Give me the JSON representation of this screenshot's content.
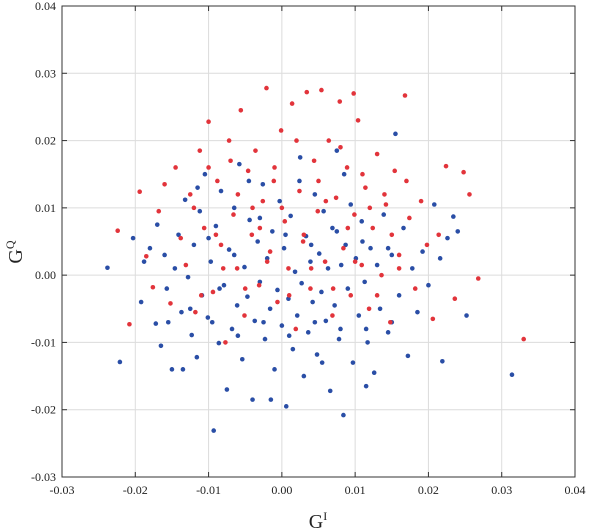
{
  "chart_data": {
    "type": "scatter",
    "title": "",
    "xlabel": {
      "base": "G",
      "sup": "I"
    },
    "ylabel": {
      "base": "G",
      "sup": "Q"
    },
    "xlim": [
      -0.03,
      0.04
    ],
    "ylim": [
      -0.03,
      0.04
    ],
    "xticks": [
      "-0.03",
      "-0.02",
      "-0.01",
      "0.00",
      "0.01",
      "0.02",
      "0.03",
      "0.04"
    ],
    "yticks": [
      "-0.03",
      "-0.02",
      "-0.01",
      "0.00",
      "0.01",
      "0.02",
      "0.03",
      "0.04"
    ],
    "grid": true,
    "legend": "none",
    "series": [
      {
        "color": "#2a4ea6",
        "points": [
          [
            -0.0238,
            0.0011
          ],
          [
            -0.0221,
            -0.0129
          ],
          [
            -0.0203,
            0.0055
          ],
          [
            -0.0192,
            -0.004
          ],
          [
            -0.0188,
            0.002
          ],
          [
            -0.0172,
            -0.0072
          ],
          [
            -0.017,
            0.0075
          ],
          [
            -0.0165,
            -0.0105
          ],
          [
            -0.016,
            0.003
          ],
          [
            -0.0157,
            -0.002
          ],
          [
            -0.015,
            -0.014
          ],
          [
            -0.0146,
            0.001
          ],
          [
            -0.0141,
            0.006
          ],
          [
            -0.0137,
            -0.0055
          ],
          [
            -0.0132,
            0.0112
          ],
          [
            -0.0128,
            -0.0003
          ],
          [
            -0.0123,
            -0.0089
          ],
          [
            -0.012,
            0.0045
          ],
          [
            -0.0116,
            -0.0122
          ],
          [
            -0.0112,
            0.0095
          ],
          [
            -0.0109,
            -0.003
          ],
          [
            -0.0105,
            0.015
          ],
          [
            -0.0101,
            -0.0063
          ],
          [
            -0.0097,
            0.002
          ],
          [
            -0.0093,
            -0.0231
          ],
          [
            -0.009,
            0.0073
          ],
          [
            -0.0086,
            -0.0101
          ],
          [
            -0.0083,
            0.0125
          ],
          [
            -0.0079,
            -0.0015
          ],
          [
            -0.0075,
            -0.017
          ],
          [
            -0.0072,
            0.0038
          ],
          [
            -0.0068,
            -0.008
          ],
          [
            -0.0065,
            0.01
          ],
          [
            -0.0061,
            -0.0045
          ],
          [
            -0.0058,
            0.0165
          ],
          [
            -0.0054,
            -0.0125
          ],
          [
            -0.0051,
            0.0012
          ],
          [
            -0.0047,
            -0.0032
          ],
          [
            -0.0044,
            0.0082
          ],
          [
            -0.004,
            -0.0185
          ],
          [
            -0.0037,
            -0.0068
          ],
          [
            -0.0033,
            0.005
          ],
          [
            -0.003,
            -0.001
          ],
          [
            -0.0026,
            0.0135
          ],
          [
            -0.0023,
            -0.0095
          ],
          [
            -0.002,
            0.0025
          ],
          [
            -0.0016,
            -0.005
          ],
          [
            -0.0013,
            0.0065
          ],
          [
            -0.001,
            -0.014
          ],
          [
            -0.0006,
            -0.0022
          ],
          [
            -0.0003,
            0.011
          ],
          [
            0.0,
            -0.0075
          ],
          [
            0.0003,
            0.004
          ],
          [
            0.0006,
            -0.0195
          ],
          [
            0.0009,
            -0.0035
          ],
          [
            0.0012,
            0.0088
          ],
          [
            0.0015,
            -0.011
          ],
          [
            0.0018,
            0.0005
          ],
          [
            0.0021,
            -0.006
          ],
          [
            0.0024,
            0.014
          ],
          [
            0.0027,
            -0.0012
          ],
          [
            0.003,
            -0.015
          ],
          [
            0.0033,
            0.0058
          ],
          [
            0.0036,
            -0.0085
          ],
          [
            0.0039,
            0.002
          ],
          [
            0.0042,
            -0.004
          ],
          [
            0.0045,
            0.012
          ],
          [
            0.0048,
            -0.0118
          ],
          [
            0.0051,
            0.0032
          ],
          [
            0.0054,
            -0.0025
          ],
          [
            0.0057,
            0.0095
          ],
          [
            0.006,
            -0.0068
          ],
          [
            0.0063,
            0.001
          ],
          [
            0.0066,
            -0.0172
          ],
          [
            0.0069,
            0.007
          ],
          [
            0.0072,
            -0.0045
          ],
          [
            0.0075,
            0.0185
          ],
          [
            0.0078,
            -0.0095
          ],
          [
            0.0081,
            0.0015
          ],
          [
            0.0084,
            -0.0208
          ],
          [
            0.0087,
            0.0045
          ],
          [
            0.009,
            -0.002
          ],
          [
            0.0094,
            0.0105
          ],
          [
            0.0097,
            -0.013
          ],
          [
            0.0101,
            0.0025
          ],
          [
            0.0105,
            -0.006
          ],
          [
            0.0109,
            0.008
          ],
          [
            0.0113,
            -0.001
          ],
          [
            0.0117,
            -0.01
          ],
          [
            0.0121,
            0.004
          ],
          [
            0.0126,
            -0.0145
          ],
          [
            0.013,
            0.0015
          ],
          [
            0.0134,
            -0.005
          ],
          [
            0.0139,
            0.009
          ],
          [
            0.0145,
            -0.0085
          ],
          [
            0.015,
            0.003
          ],
          [
            0.0155,
            0.021
          ],
          [
            0.016,
            -0.003
          ],
          [
            0.0166,
            0.007
          ],
          [
            0.0172,
            -0.012
          ],
          [
            0.0178,
            0.001
          ],
          [
            0.0185,
            -0.0055
          ],
          [
            0.0192,
            0.0035
          ],
          [
            0.02,
            -0.0015
          ],
          [
            0.0208,
            0.0105
          ],
          [
            0.0216,
            0.0025
          ],
          [
            0.0219,
            -0.0128
          ],
          [
            0.0226,
            0.0055
          ],
          [
            0.0234,
            0.0087
          ],
          [
            0.024,
            0.0065
          ],
          [
            0.0252,
            -0.006
          ],
          [
            0.0314,
            -0.0148
          ],
          [
            -0.0115,
            0.013
          ],
          [
            -0.0085,
            -0.002
          ],
          [
            -0.0045,
            0.014
          ],
          [
            -0.0015,
            -0.0185
          ],
          [
            0.0025,
            0.0175
          ],
          [
            0.0055,
            -0.013
          ],
          [
            0.0085,
            0.015
          ],
          [
            0.0115,
            -0.0165
          ],
          [
            -0.0135,
            -0.014
          ],
          [
            -0.01,
            0.0055
          ],
          [
            -0.0065,
            0.003
          ],
          [
            -0.003,
            0.0085
          ],
          [
            0.0005,
            0.006
          ],
          [
            0.004,
            0.0045
          ],
          [
            0.0075,
            0.0065
          ],
          [
            0.011,
            0.005
          ],
          [
            0.0145,
            0.004
          ],
          [
            -0.018,
            0.004
          ],
          [
            -0.0155,
            -0.007
          ],
          [
            -0.0125,
            -0.005
          ],
          [
            -0.0095,
            -0.007
          ],
          [
            -0.006,
            -0.009
          ],
          [
            -0.0025,
            -0.007
          ],
          [
            0.001,
            -0.009
          ],
          [
            0.0045,
            -0.007
          ],
          [
            0.008,
            -0.008
          ],
          [
            0.0115,
            -0.008
          ],
          [
            0.015,
            -0.007
          ]
        ]
      },
      {
        "color": "#e2343b",
        "points": [
          [
            -0.0224,
            0.0066
          ],
          [
            -0.0208,
            -0.0073
          ],
          [
            -0.0194,
            0.0124
          ],
          [
            -0.0185,
            0.0028
          ],
          [
            -0.0176,
            -0.0018
          ],
          [
            -0.0168,
            0.0095
          ],
          [
            -0.016,
            0.0135
          ],
          [
            -0.0152,
            -0.0042
          ],
          [
            -0.0145,
            0.016
          ],
          [
            -0.0138,
            0.0055
          ],
          [
            -0.0131,
            0.0015
          ],
          [
            -0.0125,
            0.012
          ],
          [
            -0.0118,
            -0.0055
          ],
          [
            -0.0112,
            0.0185
          ],
          [
            -0.0106,
            0.007
          ],
          [
            -0.01,
            0.0228
          ],
          [
            -0.0094,
            -0.0025
          ],
          [
            -0.0088,
            0.014
          ],
          [
            -0.0083,
            0.0045
          ],
          [
            -0.0077,
            -0.01
          ],
          [
            -0.0072,
            0.02
          ],
          [
            -0.0066,
            0.009
          ],
          [
            -0.0061,
            0.001
          ],
          [
            -0.0056,
            0.0245
          ],
          [
            -0.0051,
            -0.006
          ],
          [
            -0.0046,
            0.0155
          ],
          [
            -0.0041,
            0.006
          ],
          [
            -0.0036,
            0.0185
          ],
          [
            -0.0031,
            -0.0015
          ],
          [
            -0.0026,
            0.011
          ],
          [
            -0.0021,
            0.0278
          ],
          [
            -0.0016,
            0.0035
          ],
          [
            -0.0011,
            0.014
          ],
          [
            -0.0006,
            -0.004
          ],
          [
            -0.0001,
            0.0215
          ],
          [
            0.0004,
            0.008
          ],
          [
            0.0009,
            0.001
          ],
          [
            0.0014,
            0.0255
          ],
          [
            0.0019,
            -0.008
          ],
          [
            0.0024,
            0.0125
          ],
          [
            0.0029,
            0.005
          ],
          [
            0.0034,
            0.0272
          ],
          [
            0.0039,
            -0.002
          ],
          [
            0.0044,
            0.017
          ],
          [
            0.0049,
            0.0095
          ],
          [
            0.0054,
            0.0275
          ],
          [
            0.0059,
            0.002
          ],
          [
            0.0064,
            0.02
          ],
          [
            0.0069,
            -0.006
          ],
          [
            0.0074,
            0.0115
          ],
          [
            0.0079,
            0.0258
          ],
          [
            0.0084,
            0.004
          ],
          [
            0.0089,
            0.016
          ],
          [
            0.0094,
            -0.003
          ],
          [
            0.0099,
            0.009
          ],
          [
            0.0104,
            0.023
          ],
          [
            0.0109,
            0.0015
          ],
          [
            0.0114,
            0.013
          ],
          [
            0.0119,
            -0.005
          ],
          [
            0.0124,
            0.007
          ],
          [
            0.013,
            0.018
          ],
          [
            0.0136,
            0.0
          ],
          [
            0.0142,
            0.0105
          ],
          [
            0.0148,
            -0.007
          ],
          [
            0.0154,
            0.0155
          ],
          [
            0.016,
            0.003
          ],
          [
            0.0168,
            0.0267
          ],
          [
            0.0174,
            0.0085
          ],
          [
            0.0182,
            -0.002
          ],
          [
            0.019,
            0.011
          ],
          [
            0.0198,
            0.0045
          ],
          [
            0.0206,
            -0.0065
          ],
          [
            0.0214,
            0.006
          ],
          [
            0.0224,
            0.0162
          ],
          [
            0.0236,
            -0.0035
          ],
          [
            0.0248,
            0.0153
          ],
          [
            0.0256,
            0.012
          ],
          [
            0.0268,
            -0.0005
          ],
          [
            0.033,
            -0.0095
          ],
          [
            0.0098,
            0.027
          ],
          [
            -0.012,
            0.01
          ],
          [
            -0.009,
            0.006
          ],
          [
            -0.006,
            0.012
          ],
          [
            -0.003,
            0.007
          ],
          [
            0.0,
            0.01
          ],
          [
            0.003,
            0.006
          ],
          [
            0.006,
            0.011
          ],
          [
            0.009,
            0.007
          ],
          [
            0.012,
            0.01
          ],
          [
            0.015,
            0.006
          ],
          [
            -0.011,
            -0.003
          ],
          [
            -0.008,
            0.001
          ],
          [
            -0.005,
            -0.002
          ],
          [
            -0.002,
            0.002
          ],
          [
            0.001,
            -0.003
          ],
          [
            0.004,
            0.001
          ],
          [
            0.007,
            -0.002
          ],
          [
            0.01,
            0.002
          ],
          [
            0.013,
            -0.003
          ],
          [
            0.016,
            0.001
          ],
          [
            -0.01,
            0.016
          ],
          [
            -0.007,
            0.017
          ],
          [
            -0.004,
            0.01
          ],
          [
            -0.001,
            0.016
          ],
          [
            0.002,
            0.02
          ],
          [
            0.005,
            0.014
          ],
          [
            0.008,
            0.019
          ],
          [
            0.011,
            0.015
          ],
          [
            0.014,
            0.012
          ],
          [
            0.017,
            0.014
          ]
        ]
      }
    ]
  }
}
